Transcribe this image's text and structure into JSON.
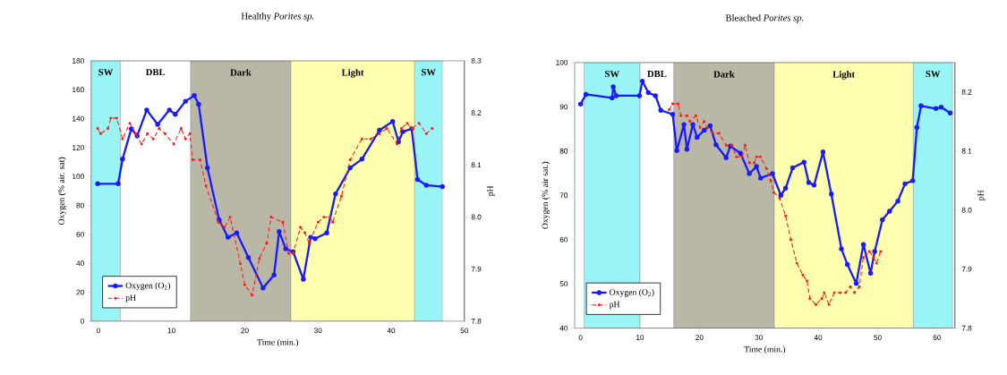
{
  "chart_data": [
    {
      "type": "line",
      "title": "Healthy *Porites sp.*",
      "xlabel": "Time (min.)",
      "ylabel": "Oxygen (% air. sat)",
      "y2label": "pH",
      "xlim": [
        -1,
        50
      ],
      "xticks": [
        0,
        10,
        20,
        30,
        40,
        50
      ],
      "ylim": [
        0,
        180
      ],
      "yticks": [
        0,
        20,
        40,
        60,
        80,
        100,
        120,
        140,
        160,
        180
      ],
      "y2lim": [
        7.8,
        8.3
      ],
      "y2ticks": [
        7.8,
        7.9,
        {
          "value": 8,
          "label": "8.0"
        },
        8.1,
        8.2,
        8.3
      ],
      "marker": "circle",
      "legend": "bottom left",
      "bands": [
        {
          "axis": "x",
          "from": -1,
          "to": 3,
          "label": "SW",
          "color": "#99f5f5"
        },
        {
          "axis": "x",
          "from": 3,
          "to": 12.6,
          "label": "DBL",
          "color": "#ffffff"
        },
        {
          "axis": "x",
          "from": 12.6,
          "to": 26.3,
          "label": "Dark",
          "color": "#b9b8a6"
        },
        {
          "axis": "x",
          "from": 26.3,
          "to": 43.2,
          "label": "Light",
          "color": "#ffffb0"
        },
        {
          "axis": "x",
          "from": 43.2,
          "to": 47,
          "label": "SW",
          "color": "#99f5f5"
        }
      ],
      "series": [
        {
          "name": "Oxygen (O$_{2}$)",
          "color": "#1a1aff",
          "line_style": "solid",
          "x": [
            -0.1,
            2.7,
            3.3,
            4.5,
            5.3,
            6.6,
            8.1,
            9.7,
            10.5,
            11.9,
            13.1,
            13.7,
            14.9,
            16.5,
            17.7,
            18.9,
            20.5,
            22.5,
            24.0,
            24.7,
            25.6,
            26.6,
            28.0,
            29.0,
            29.6,
            31.2,
            32.4,
            34.4,
            36.0,
            38.4,
            40.2,
            41.0,
            41.6,
            42.8,
            43.6,
            44.8,
            47.0
          ],
          "values": [
            95,
            95,
            112,
            133,
            128,
            146,
            136,
            146,
            143,
            152,
            156,
            150,
            106,
            70,
            58,
            61,
            44,
            23,
            32,
            62,
            50,
            48,
            29,
            58,
            57,
            61,
            88,
            106,
            112,
            132,
            138,
            124,
            131,
            133,
            98,
            94,
            93
          ]
        },
        {
          "name": "pH",
          "color": "#ff1a1a",
          "line_style": "dashed",
          "axis": "y2",
          "x": [
            -0.1,
            0.3,
            1.3,
            1.7,
            2.5,
            3.3,
            4.3,
            5.1,
            5.9,
            6.7,
            7.5,
            8.3,
            9.1,
            10.3,
            11.3,
            11.9,
            12.5,
            12.9,
            13.9,
            14.7,
            16.4,
            17.2,
            18.0,
            19.4,
            20.0,
            21.0,
            22.0,
            23.0,
            23.6,
            25.2,
            26.0,
            26.6,
            27.6,
            28.2,
            28.8,
            30.0,
            30.8,
            31.6,
            32.0,
            33.2,
            34.4,
            36.0,
            37.2,
            38.4,
            39.4,
            40.8,
            41.4,
            42.2,
            42.8,
            43.8,
            44.8,
            45.6
          ],
          "values": [
            8.17,
            8.16,
            8.17,
            8.19,
            8.19,
            8.15,
            8.18,
            8.16,
            8.14,
            8.16,
            8.15,
            8.17,
            8.16,
            8.14,
            8.17,
            8.15,
            8.16,
            8.11,
            8.11,
            8.06,
            7.99,
            7.98,
            8.0,
            7.91,
            7.87,
            7.85,
            7.92,
            7.95,
            8.0,
            7.99,
            7.93,
            7.93,
            7.98,
            7.97,
            7.95,
            7.99,
            8.0,
            8.0,
            7.99,
            8.04,
            8.11,
            8.15,
            8.15,
            8.16,
            8.17,
            8.14,
            8.17,
            8.18,
            8.17,
            8.18,
            8.16,
            8.17
          ]
        }
      ]
    },
    {
      "type": "line",
      "title": "Bleached *Porites sp.*",
      "xlabel": "Time (min.)",
      "ylabel": "Oxygen (% air sat.)",
      "y2label": "pH",
      "xlim": [
        -1,
        63
      ],
      "xticks": [
        0,
        10,
        20,
        30,
        40,
        50,
        60
      ],
      "ylim": [
        40,
        100
      ],
      "yticks": [
        40,
        50,
        60,
        70,
        80,
        90,
        100
      ],
      "y2lim": [
        7.8,
        8.25
      ],
      "y2ticks": [
        7.8,
        7.9,
        {
          "value": 8,
          "label": "8.0"
        },
        8.1,
        8.2
      ],
      "marker": "circle",
      "legend": "bottom left",
      "bands": [
        {
          "axis": "x",
          "from": 0.6,
          "to": 10,
          "label": "SW",
          "color": "#99f5f5"
        },
        {
          "axis": "x",
          "from": 10,
          "to": 15.7,
          "label": "DBL",
          "color": "#ffffff"
        },
        {
          "axis": "x",
          "from": 15.7,
          "to": 32.6,
          "label": "Dark",
          "color": "#b9b8a6"
        },
        {
          "axis": "x",
          "from": 32.6,
          "to": 56,
          "label": "Light",
          "color": "#ffffb0"
        },
        {
          "axis": "x",
          "from": 56,
          "to": 62.6,
          "label": "SW",
          "color": "#99f5f5"
        }
      ],
      "series": [
        {
          "name": "Oxygen (O$_{2}$)",
          "color": "#1a1aff",
          "line_style": "solid",
          "x": [
            0.0,
            0.9,
            5.3,
            5.5,
            6.0,
            9.9,
            10.4,
            11.4,
            12.6,
            13.5,
            15.5,
            16.2,
            17.4,
            17.9,
            18.9,
            19.6,
            20.8,
            21.8,
            22.8,
            24.5,
            25.2,
            26.9,
            28.4,
            29.6,
            30.3,
            32.3,
            33.7,
            34.5,
            35.7,
            37.6,
            38.4,
            39.3,
            40.8,
            42.2,
            43.9,
            44.9,
            46.4,
            47.6,
            48.8,
            49.5,
            50.8,
            52.0,
            53.4,
            54.6,
            55.9,
            56.6,
            57.3,
            59.8,
            60.7,
            62.2
          ],
          "values": [
            90.6,
            92.8,
            92.0,
            94.5,
            92.5,
            92.5,
            95.8,
            93.2,
            92.5,
            89.2,
            88.3,
            80.1,
            86.0,
            80.4,
            86.0,
            83.1,
            84.7,
            85.7,
            81.4,
            78.5,
            81.1,
            79.5,
            74.9,
            76.5,
            73.9,
            74.9,
            70.0,
            71.6,
            76.2,
            77.5,
            72.9,
            72.3,
            79.8,
            70.3,
            57.9,
            54.4,
            50.1,
            58.9,
            52.4,
            57.3,
            64.5,
            66.4,
            68.7,
            72.6,
            73.3,
            85.3,
            90.2,
            89.6,
            89.9,
            88.6
          ]
        },
        {
          "name": "pH",
          "color": "#ff1a1a",
          "line_style": "dashed",
          "axis": "y2",
          "x": [
            14.9,
            15.5,
            16.4,
            16.9,
            17.9,
            18.4,
            19.4,
            20.1,
            20.8,
            21.3,
            22.3,
            23.3,
            24.5,
            25.5,
            26.2,
            27.2,
            27.7,
            28.4,
            29.2,
            29.6,
            30.3,
            31.3,
            32.0,
            32.5,
            33.5,
            34.5,
            35.4,
            36.4,
            37.4,
            38.1,
            38.6,
            39.6,
            40.6,
            41.0,
            41.8,
            42.7,
            43.7,
            44.6,
            45.4,
            46.1,
            46.9,
            47.6,
            48.6,
            49.3,
            49.8,
            50.5
          ],
          "values": [
            8.17,
            8.18,
            8.18,
            8.16,
            8.16,
            8.15,
            8.16,
            8.14,
            8.15,
            8.14,
            8.13,
            8.13,
            8.11,
            8.11,
            8.09,
            8.09,
            8.11,
            8.08,
            8.08,
            8.09,
            8.09,
            8.07,
            8.05,
            8.03,
            8.02,
            7.99,
            7.95,
            7.91,
            7.89,
            7.88,
            7.85,
            7.84,
            7.85,
            7.86,
            7.84,
            7.86,
            7.86,
            7.86,
            7.87,
            7.86,
            7.87,
            7.92,
            7.93,
            7.92,
            7.91,
            7.93
          ]
        }
      ]
    }
  ]
}
